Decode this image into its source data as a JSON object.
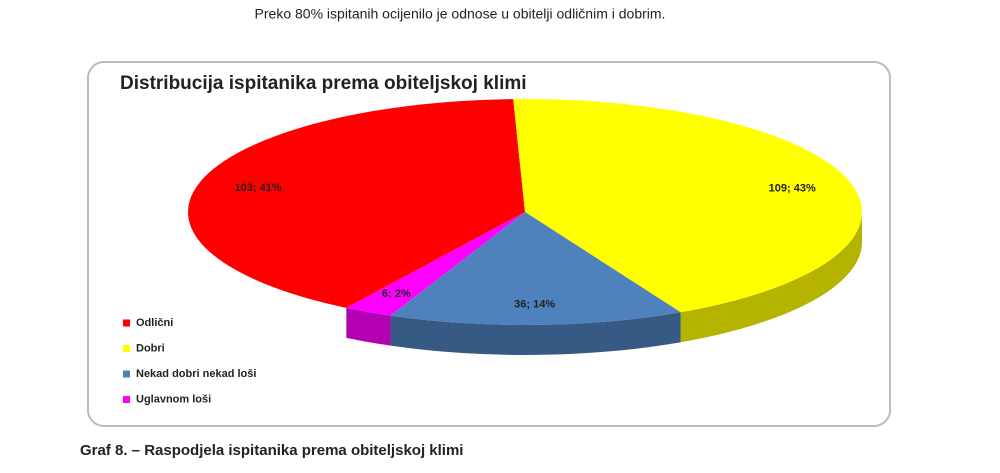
{
  "intro": "Preko 80% ispitanih ocijenilo je odnose u obitelji odličnim i dobrim.",
  "chart_data": {
    "type": "pie",
    "title": "Distribucija ispitanika prema obiteljskoj klimi",
    "categories": [
      "Odlični",
      "Dobri",
      "Nekad dobri nekad loši",
      "Uglavnom loši"
    ],
    "values": [
      103,
      109,
      36,
      6
    ],
    "value_labels": [
      "103; 41%",
      "109; 43%",
      "36; 14%",
      "6; 2%"
    ],
    "colors": [
      "#ff0000",
      "#ffff00",
      "#4f81bd",
      "#ff00ff"
    ],
    "legend": "left"
  },
  "caption": "Graf 8. – Raspodjela ispitanika prema obiteljskoj klimi"
}
